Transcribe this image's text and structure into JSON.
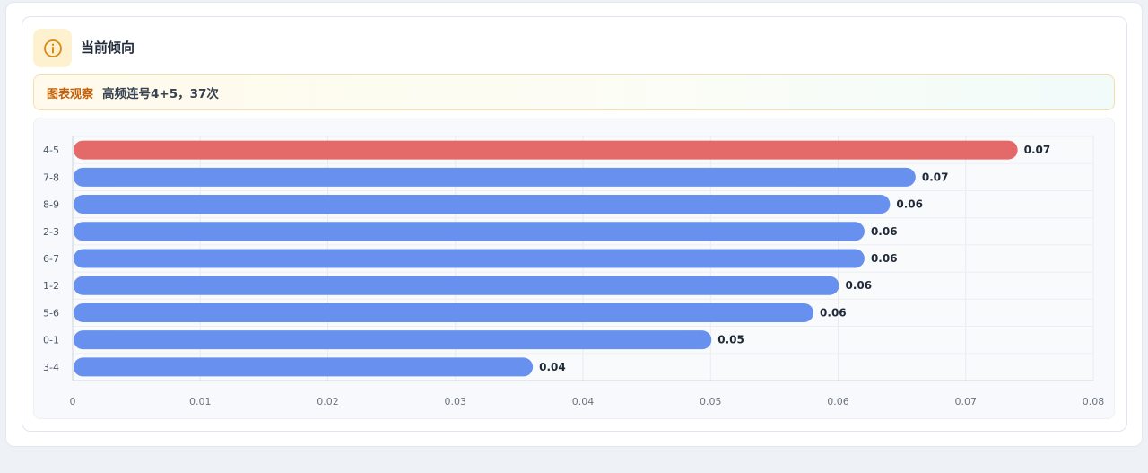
{
  "header": {
    "title": "当前倾向",
    "icon": "info-icon"
  },
  "observation": {
    "tag": "图表观察",
    "text": "高频连号4+5，37次"
  },
  "colors": {
    "highlight": "#e46a6a",
    "bar": "#6890ee",
    "icon": "#d98a14"
  },
  "chart_data": {
    "type": "bar",
    "orientation": "horizontal",
    "categories": [
      "4-5",
      "7-8",
      "8-9",
      "2-3",
      "6-7",
      "1-2",
      "5-6",
      "0-1",
      "3-4"
    ],
    "values": [
      0.074,
      0.066,
      0.064,
      0.062,
      0.062,
      0.06,
      0.058,
      0.05,
      0.036
    ],
    "value_labels": [
      "0.07",
      "0.07",
      "0.06",
      "0.06",
      "0.06",
      "0.06",
      "0.06",
      "0.05",
      "0.04"
    ],
    "highlight_index": 0,
    "xlim": [
      0,
      0.08
    ],
    "xticks": [
      "0",
      "0.01",
      "0.02",
      "0.03",
      "0.04",
      "0.05",
      "0.06",
      "0.07",
      "0.08"
    ],
    "grid": true,
    "title": "",
    "xlabel": "",
    "ylabel": ""
  }
}
